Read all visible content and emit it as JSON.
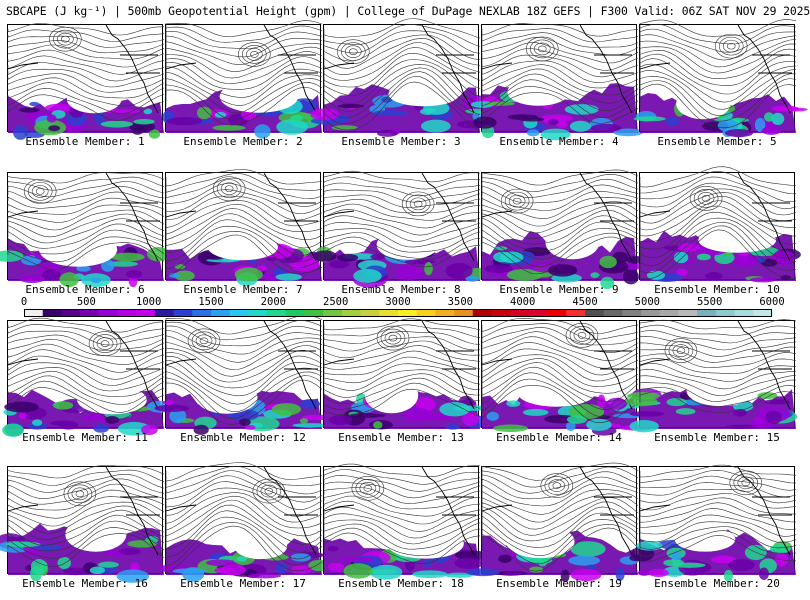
{
  "header": {
    "title": "SBCAPE (J kg⁻¹) | 500mb Geopotential Height (gpm) | College of DuPage NEXLAB 18Z GEFS | F300 Valid: 06Z SAT NOV 29 2025"
  },
  "members": [
    {
      "label": "Ensemble Member: 1"
    },
    {
      "label": "Ensemble Member: 2"
    },
    {
      "label": "Ensemble Member: 3"
    },
    {
      "label": "Ensemble Member: 4"
    },
    {
      "label": "Ensemble Member: 5"
    },
    {
      "label": "Ensemble Member: 6"
    },
    {
      "label": "Ensemble Member: 7"
    },
    {
      "label": "Ensemble Member: 8"
    },
    {
      "label": "Ensemble Member: 9"
    },
    {
      "label": "Ensemble Member: 10"
    },
    {
      "label": "Ensemble Member: 11"
    },
    {
      "label": "Ensemble Member: 12"
    },
    {
      "label": "Ensemble Member: 13"
    },
    {
      "label": "Ensemble Member: 14"
    },
    {
      "label": "Ensemble Member: 15"
    },
    {
      "label": "Ensemble Member: 16"
    },
    {
      "label": "Ensemble Member: 17"
    },
    {
      "label": "Ensemble Member: 18"
    },
    {
      "label": "Ensemble Member: 19"
    },
    {
      "label": "Ensemble Member: 20"
    }
  ],
  "colorbar": {
    "labels": [
      "0",
      "500",
      "1000",
      "1500",
      "2000",
      "2500",
      "3000",
      "3500",
      "4000",
      "4500",
      "5000",
      "5500",
      "6000"
    ],
    "colors": [
      "#f0f0f0",
      "#3a006a",
      "#5a008e",
      "#7a00b4",
      "#9a00d6",
      "#b400e6",
      "#c800f0",
      "#2a1aa0",
      "#2a40d0",
      "#2a70e6",
      "#2aa0f0",
      "#2ac8f0",
      "#20d8c8",
      "#20d890",
      "#20c860",
      "#40c040",
      "#70c840",
      "#a0d040",
      "#c8d040",
      "#e8e030",
      "#f8f020",
      "#f8d020",
      "#f0b020",
      "#e89020",
      "#b00000",
      "#c80010",
      "#d80020",
      "#e00030",
      "#f00000",
      "#f83030",
      "#505050",
      "#686868",
      "#808080",
      "#989898",
      "#a8a8a8",
      "#b8b8b8",
      "#7ab0c0",
      "#90c8d0",
      "#a8dcdc",
      "#c0e8e8"
    ]
  }
}
